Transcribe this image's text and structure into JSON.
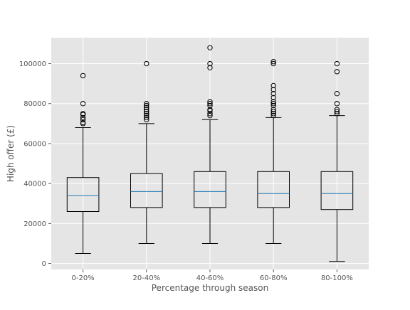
{
  "chart_data": {
    "type": "box",
    "title": "",
    "xlabel": "Percentage through season",
    "ylabel": "High offer (£)",
    "ylim": [
      -3000,
      113000
    ],
    "yticks": [
      0,
      20000,
      40000,
      60000,
      80000,
      100000
    ],
    "ytick_labels": [
      "0",
      "20000",
      "40000",
      "60000",
      "80000",
      "100000"
    ],
    "grid": true,
    "style": "ggplot",
    "colors": {
      "panel_bg": "#e5e5e5",
      "grid": "#ffffff",
      "box_edge": "#000000",
      "median": "#1f77b4",
      "text": "#555555"
    },
    "categories": [
      "0-20%",
      "20-40%",
      "40-60%",
      "60-80%",
      "80-100%"
    ],
    "boxes": [
      {
        "category": "0-20%",
        "whisker_low": 5000,
        "q1": 26000,
        "median": 34000,
        "q3": 43000,
        "whisker_high": 68000,
        "outliers": [
          70000,
          70500,
          72000,
          73000,
          74500,
          75000,
          80000,
          94000
        ]
      },
      {
        "category": "20-40%",
        "whisker_low": 10000,
        "q1": 28000,
        "median": 36000,
        "q3": 45000,
        "whisker_high": 70000,
        "outliers": [
          72000,
          73000,
          74000,
          75000,
          76000,
          77000,
          78000,
          79000,
          80000,
          100000
        ]
      },
      {
        "category": "40-60%",
        "whisker_low": 10000,
        "q1": 28000,
        "median": 36000,
        "q3": 46000,
        "whisker_high": 72000,
        "outliers": [
          74000,
          75000,
          76500,
          77000,
          79000,
          80000,
          81000,
          98000,
          100000,
          108000
        ]
      },
      {
        "category": "60-80%",
        "whisker_low": 10000,
        "q1": 28000,
        "median": 35000,
        "q3": 46000,
        "whisker_high": 73000,
        "outliers": [
          74000,
          75000,
          76000,
          77000,
          79000,
          80000,
          81000,
          83000,
          85000,
          87000,
          89000,
          100000,
          101000
        ]
      },
      {
        "category": "80-100%",
        "whisker_low": 1000,
        "q1": 27000,
        "median": 35000,
        "q3": 46000,
        "whisker_high": 74000,
        "outliers": [
          75000,
          76000,
          77000,
          80000,
          85000,
          96000,
          100000
        ]
      }
    ]
  }
}
